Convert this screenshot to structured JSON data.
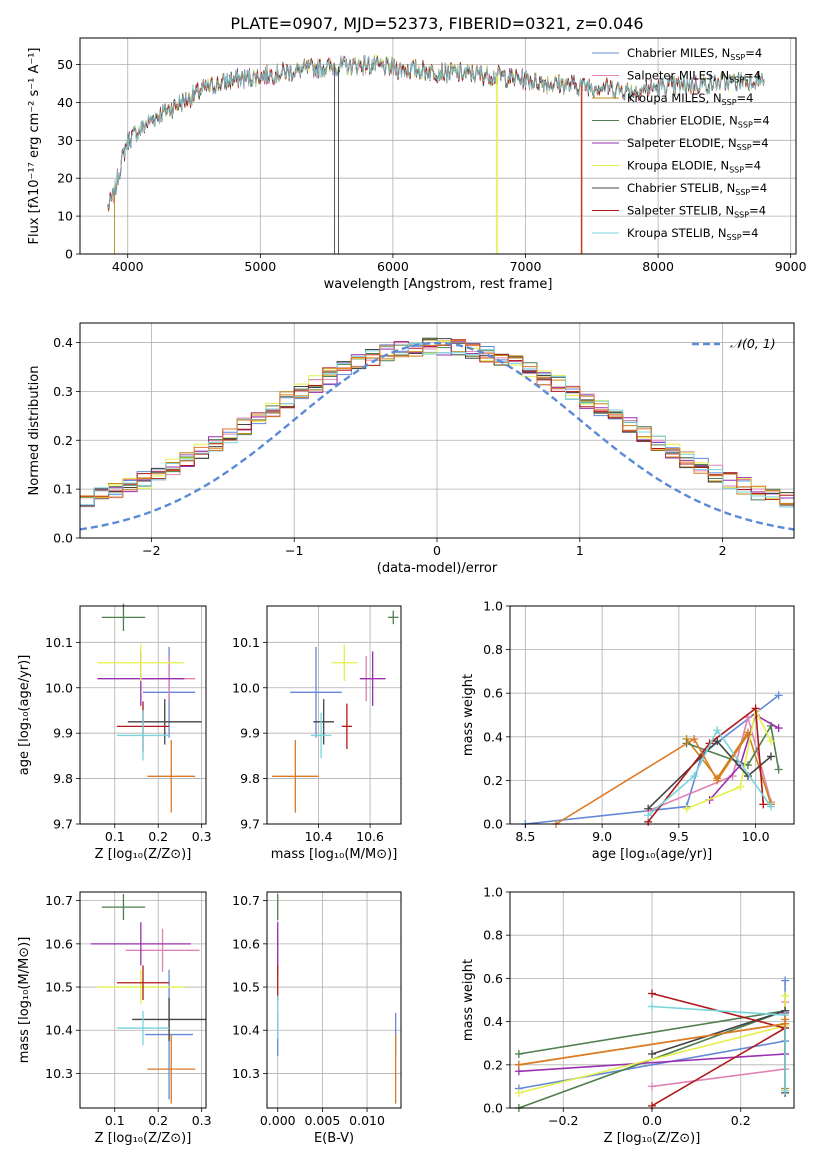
{
  "figure_title": "PLATE=0907, MJD=52373, FIBERID=0321, z=0.046",
  "colors": [
    "#6488d8",
    "#e282b4",
    "#c28a10",
    "#4f7f4f",
    "#9a2fb0",
    "#e4f04a",
    "#444444",
    "#b01818",
    "#78d4dc",
    "#dd7a26"
  ],
  "chart_data": [
    {
      "id": "spectrum",
      "type": "line",
      "title": "PLATE=0907, MJD=52373, FIBERID=0321, z=0.046",
      "xlabel": "wavelength [Angstrom, rest frame]",
      "ylabel": "Flux [fλ10⁻¹⁷ erg cm⁻² s⁻¹ A⁻¹]",
      "xlim": [
        3640,
        9040
      ],
      "ylim": [
        0,
        57
      ],
      "xticks": [
        "4000",
        "5000",
        "6000",
        "7000",
        "8000",
        "9000"
      ],
      "yticks": [
        "0",
        "10",
        "20",
        "30",
        "40",
        "50"
      ],
      "grid": true,
      "legend_position": "top-right",
      "legend": [
        "Chabrier MILES, N_SSP=4",
        "Salpeter MILES, N_SSP=4",
        "Kroupa MILES, N_SSP=4",
        "Chabrier ELODIE, N_SSP=4",
        "Salpeter ELODIE, N_SSP=4",
        "Kroupa ELODIE, N_SSP=4",
        "Chabrier STELIB, N_SSP=4",
        "Salpeter STELIB, N_SSP=4",
        "Kroupa STELIB, N_SSP=4"
      ],
      "continuum": [
        [
          3850,
          12
        ],
        [
          3900,
          16
        ],
        [
          3950,
          24
        ],
        [
          4000,
          30
        ],
        [
          4100,
          33
        ],
        [
          4200,
          36
        ],
        [
          4300,
          38
        ],
        [
          4400,
          40
        ],
        [
          4500,
          42
        ],
        [
          4600,
          44
        ],
        [
          4800,
          46
        ],
        [
          5000,
          47
        ],
        [
          5200,
          48
        ],
        [
          5400,
          49
        ],
        [
          5600,
          49.5
        ],
        [
          5800,
          50
        ],
        [
          6000,
          49
        ],
        [
          6200,
          48.5
        ],
        [
          6400,
          48
        ],
        [
          6600,
          47.5
        ],
        [
          6800,
          47
        ],
        [
          7000,
          46
        ],
        [
          7200,
          45
        ],
        [
          7400,
          44.5
        ],
        [
          7600,
          44
        ],
        [
          7800,
          43
        ],
        [
          8000,
          44
        ],
        [
          8200,
          44.5
        ],
        [
          8400,
          45
        ],
        [
          8600,
          45.5
        ],
        [
          8800,
          46
        ]
      ],
      "dropouts": [
        {
          "x": 3900,
          "y": 0,
          "series": 2
        },
        {
          "x": 5560,
          "y": 0,
          "series": 6
        },
        {
          "x": 5590,
          "y": 0,
          "series": 6
        },
        {
          "x": 6780,
          "y": 0,
          "series": 5
        },
        {
          "x": 6790,
          "y": 0,
          "series": 5
        },
        {
          "x": 7420,
          "y": 0,
          "series": 9
        },
        {
          "x": 7425,
          "y": 0,
          "series": 7
        }
      ]
    },
    {
      "id": "residuals",
      "type": "histogram",
      "xlabel": "(data-model)/error",
      "ylabel": "Normed distribution",
      "xlim": [
        -2.5,
        2.5
      ],
      "ylim": [
        0,
        0.44
      ],
      "xticks": [
        "−2",
        "−1",
        "0",
        "1",
        "2"
      ],
      "yticks": [
        "0.0",
        "0.1",
        "0.2",
        "0.3",
        "0.4"
      ],
      "grid": true,
      "legend_position": "top-right",
      "legend": [
        "𝒩(0, 1)"
      ],
      "bins": 50,
      "reference_curve": "gaussian mean 0 sigma 1"
    },
    {
      "id": "age-vs-Z",
      "type": "scatter",
      "xlabel": "Z [log₁₀(Z/Z⊙)]",
      "ylabel": "age  [log₁₀(age/yr)]",
      "xlim": [
        0.02,
        0.31
      ],
      "ylim": [
        9.7,
        10.18
      ],
      "xticks": [
        "0.1",
        "0.2",
        "0.3"
      ],
      "yticks": [
        "9.7",
        "9.8",
        "9.9",
        "10.0",
        "10.1"
      ],
      "grid": true,
      "points": [
        {
          "series": 0,
          "x": 0.225,
          "y": 9.99,
          "xerr": 0.06,
          "yerr": 0.1
        },
        {
          "series": 1,
          "x": 0.225,
          "y": 10.02,
          "xerr": 0.06,
          "yerr": 0.05
        },
        {
          "series": 3,
          "x": 0.12,
          "y": 10.155,
          "xerr": 0.05,
          "yerr": 0.03
        },
        {
          "series": 4,
          "x": 0.16,
          "y": 10.02,
          "xerr": 0.1,
          "yerr": 0.06
        },
        {
          "series": 5,
          "x": 0.16,
          "y": 10.055,
          "xerr": 0.1,
          "yerr": 0.04
        },
        {
          "series": 6,
          "x": 0.215,
          "y": 9.925,
          "xerr": 0.085,
          "yerr": 0.05
        },
        {
          "series": 7,
          "x": 0.165,
          "y": 9.915,
          "xerr": 0.06,
          "yerr": 0.055
        },
        {
          "series": 8,
          "x": 0.165,
          "y": 9.895,
          "xerr": 0.06,
          "yerr": 0.055
        },
        {
          "series": 9,
          "x": 0.23,
          "y": 9.805,
          "xerr": 0.055,
          "yerr": 0.08
        }
      ]
    },
    {
      "id": "age-vs-mass",
      "type": "scatter",
      "xlabel": "mass [log₁₀(M/M⊙)]",
      "ylabel": "",
      "xlim": [
        10.2,
        10.72
      ],
      "ylim": [
        9.7,
        10.18
      ],
      "xticks": [
        "10.4",
        "10.6"
      ],
      "yticks": [
        "9.7",
        "9.8",
        "9.9",
        "10.0",
        "10.1"
      ],
      "grid": true,
      "points": [
        {
          "series": 0,
          "x": 10.39,
          "y": 9.99,
          "xerr": 0.1,
          "yerr": 0.1
        },
        {
          "series": 1,
          "x": 10.585,
          "y": 10.02,
          "xerr": 0.02,
          "yerr": 0.05
        },
        {
          "series": 3,
          "x": 10.69,
          "y": 10.155,
          "xerr": 0.02,
          "yerr": 0.015
        },
        {
          "series": 4,
          "x": 10.61,
          "y": 10.02,
          "xerr": 0.05,
          "yerr": 0.06
        },
        {
          "series": 5,
          "x": 10.5,
          "y": 10.055,
          "xerr": 0.05,
          "yerr": 0.04
        },
        {
          "series": 6,
          "x": 10.42,
          "y": 9.925,
          "xerr": 0.04,
          "yerr": 0.05
        },
        {
          "series": 7,
          "x": 10.51,
          "y": 9.915,
          "xerr": 0.02,
          "yerr": 0.05
        },
        {
          "series": 8,
          "x": 10.41,
          "y": 9.895,
          "xerr": 0.04,
          "yerr": 0.05
        },
        {
          "series": 9,
          "x": 10.31,
          "y": 9.805,
          "xerr": 0.09,
          "yerr": 0.08
        }
      ]
    },
    {
      "id": "weight-vs-age",
      "type": "line",
      "xlabel": "age  [log₁₀(age/yr)]",
      "ylabel": "mass weight",
      "xlim": [
        8.4,
        10.25
      ],
      "ylim": [
        0,
        1
      ],
      "xticks": [
        "8.5",
        "9.0",
        "9.5",
        "10.0"
      ],
      "yticks": [
        "0.0",
        "0.2",
        "0.4",
        "0.6",
        "0.8",
        "1.0"
      ],
      "grid": true,
      "series": [
        {
          "series": 0,
          "points": [
            [
              8.5,
              0.0
            ],
            [
              9.55,
              0.08
            ],
            [
              9.65,
              0.32
            ],
            [
              10.15,
              0.59
            ]
          ]
        },
        {
          "series": 1,
          "points": [
            [
              9.3,
              0.06
            ],
            [
              9.85,
              0.22
            ],
            [
              9.95,
              0.49
            ],
            [
              10.1,
              0.1
            ]
          ]
        },
        {
          "series": 2,
          "points": [
            [
              9.55,
              0.39
            ],
            [
              9.75,
              0.21
            ],
            [
              9.95,
              0.42
            ],
            [
              10.1,
              0.09
            ]
          ]
        },
        {
          "series": 3,
          "points": [
            [
              9.55,
              0.37
            ],
            [
              9.95,
              0.27
            ],
            [
              10.1,
              0.45
            ],
            [
              10.15,
              0.25
            ]
          ]
        },
        {
          "series": 4,
          "points": [
            [
              9.7,
              0.11
            ],
            [
              9.9,
              0.27
            ],
            [
              10.0,
              0.5
            ],
            [
              10.15,
              0.44
            ]
          ]
        },
        {
          "series": 5,
          "points": [
            [
              9.55,
              0.07
            ],
            [
              9.9,
              0.17
            ],
            [
              10.0,
              0.52
            ],
            [
              10.1,
              0.38
            ]
          ]
        },
        {
          "series": 6,
          "points": [
            [
              9.3,
              0.07
            ],
            [
              9.75,
              0.38
            ],
            [
              9.95,
              0.22
            ],
            [
              10.1,
              0.31
            ]
          ]
        },
        {
          "series": 7,
          "points": [
            [
              9.3,
              0.01
            ],
            [
              9.7,
              0.37
            ],
            [
              10.0,
              0.53
            ],
            [
              10.05,
              0.09
            ]
          ]
        },
        {
          "series": 8,
          "points": [
            [
              9.3,
              0.04
            ],
            [
              9.6,
              0.22
            ],
            [
              9.75,
              0.43
            ],
            [
              10.1,
              0.08
            ]
          ]
        },
        {
          "series": 9,
          "points": [
            [
              8.7,
              0.0
            ],
            [
              9.6,
              0.39
            ],
            [
              9.75,
              0.2
            ],
            [
              9.95,
              0.41
            ]
          ]
        }
      ]
    },
    {
      "id": "mass-vs-Z",
      "type": "scatter",
      "xlabel": "Z [log₁₀(Z/Z⊙)]",
      "ylabel": "mass [log₁₀(M/M⊙)]",
      "xlim": [
        0.02,
        0.31
      ],
      "ylim": [
        10.22,
        10.72
      ],
      "xticks": [
        "0.1",
        "0.2",
        "0.3"
      ],
      "yticks": [
        "10.3",
        "10.4",
        "10.5",
        "10.6",
        "10.7"
      ],
      "grid": true,
      "points": [
        {
          "series": 0,
          "x": 0.225,
          "y": 10.39,
          "xerr": 0.055,
          "yerr": 0.15
        },
        {
          "series": 1,
          "x": 0.21,
          "y": 10.585,
          "xerr": 0.085,
          "yerr": 0.05
        },
        {
          "series": 3,
          "x": 0.12,
          "y": 10.685,
          "xerr": 0.05,
          "yerr": 0.03
        },
        {
          "series": 4,
          "x": 0.16,
          "y": 10.6,
          "xerr": 0.115,
          "yerr": 0.05
        },
        {
          "series": 5,
          "x": 0.16,
          "y": 10.5,
          "xerr": 0.1,
          "yerr": 0.04
        },
        {
          "series": 6,
          "x": 0.225,
          "y": 10.425,
          "xerr": 0.085,
          "yerr": 0.05
        },
        {
          "series": 7,
          "x": 0.165,
          "y": 10.51,
          "xerr": 0.06,
          "yerr": 0.04
        },
        {
          "series": 8,
          "x": 0.165,
          "y": 10.405,
          "xerr": 0.06,
          "yerr": 0.04
        },
        {
          "series": 9,
          "x": 0.23,
          "y": 10.31,
          "xerr": 0.055,
          "yerr": 0.08
        }
      ]
    },
    {
      "id": "mass-vs-EBV",
      "type": "scatter",
      "xlabel": "E(B-V)",
      "ylabel": "",
      "xlim": [
        -0.0012,
        0.0138
      ],
      "ylim": [
        10.22,
        10.72
      ],
      "xticks": [
        "0.000",
        "0.005",
        "0.010"
      ],
      "yticks": [
        "10.3",
        "10.4",
        "10.5",
        "10.6",
        "10.7"
      ],
      "grid": true,
      "points": [
        {
          "series": 0,
          "x": 0.0,
          "y": 10.39,
          "xerr": 0.0,
          "yerr": 0.05
        },
        {
          "series": 1,
          "x": 0.0,
          "y": 10.58,
          "xerr": 0.0,
          "yerr": 0.05
        },
        {
          "series": 3,
          "x": 0.0,
          "y": 10.685,
          "xerr": 0.0,
          "yerr": 0.03
        },
        {
          "series": 4,
          "x": 0.0,
          "y": 10.6,
          "xerr": 0.0,
          "yerr": 0.05
        },
        {
          "series": 7,
          "x": 0.0,
          "y": 10.51,
          "xerr": 0.0,
          "yerr": 0.04
        },
        {
          "series": 8,
          "x": 0.0,
          "y": 10.43,
          "xerr": 0.0,
          "yerr": 0.05
        },
        {
          "series": 0,
          "x": 0.0132,
          "y": 10.39,
          "xerr": 0.0,
          "yerr": 0.05
        },
        {
          "series": 9,
          "x": 0.0132,
          "y": 10.31,
          "xerr": 0.0,
          "yerr": 0.08
        }
      ]
    },
    {
      "id": "weight-vs-Z",
      "type": "line",
      "xlabel": "Z [log₁₀(Z/Z⊙)]",
      "ylabel": "mass weight",
      "xlim": [
        -0.32,
        0.32
      ],
      "ylim": [
        0,
        1
      ],
      "xticks": [
        "−0.2",
        "0.0",
        "0.2"
      ],
      "yticks": [
        "0.0",
        "0.2",
        "0.4",
        "0.6",
        "0.8",
        "1.0"
      ],
      "grid": true,
      "series": [
        {
          "series": 0,
          "points": [
            [
              -0.3,
              0.09
            ],
            [
              0.3,
              0.31
            ],
            [
              0.3,
              0.59
            ]
          ]
        },
        {
          "series": 1,
          "points": [
            [
              0.0,
              0.1
            ],
            [
              0.3,
              0.18
            ],
            [
              0.3,
              0.49
            ]
          ]
        },
        {
          "series": 2,
          "points": [
            [
              -0.3,
              0.2
            ],
            [
              0.3,
              0.39
            ],
            [
              0.3,
              0.09
            ]
          ]
        },
        {
          "series": 3,
          "points": [
            [
              -0.3,
              0.0
            ],
            [
              0.3,
              0.45
            ],
            [
              -0.3,
              0.25
            ]
          ]
        },
        {
          "series": 4,
          "points": [
            [
              -0.3,
              0.17
            ],
            [
              0.3,
              0.25
            ],
            [
              0.3,
              0.44
            ]
          ]
        },
        {
          "series": 5,
          "points": [
            [
              -0.3,
              0.07
            ],
            [
              0.3,
              0.38
            ],
            [
              0.3,
              0.52
            ]
          ]
        },
        {
          "series": 6,
          "points": [
            [
              0.0,
              0.25
            ],
            [
              0.3,
              0.45
            ],
            [
              0.3,
              0.07
            ]
          ]
        },
        {
          "series": 7,
          "points": [
            [
              0.0,
              0.01
            ],
            [
              0.3,
              0.37
            ],
            [
              0.0,
              0.53
            ]
          ]
        },
        {
          "series": 8,
          "points": [
            [
              0.0,
              0.47
            ],
            [
              0.3,
              0.43
            ],
            [
              0.3,
              0.08
            ]
          ]
        },
        {
          "series": 9,
          "points": [
            [
              -0.3,
              0.2
            ],
            [
              0.3,
              0.39
            ],
            [
              0.3,
              0.41
            ]
          ]
        }
      ]
    }
  ]
}
